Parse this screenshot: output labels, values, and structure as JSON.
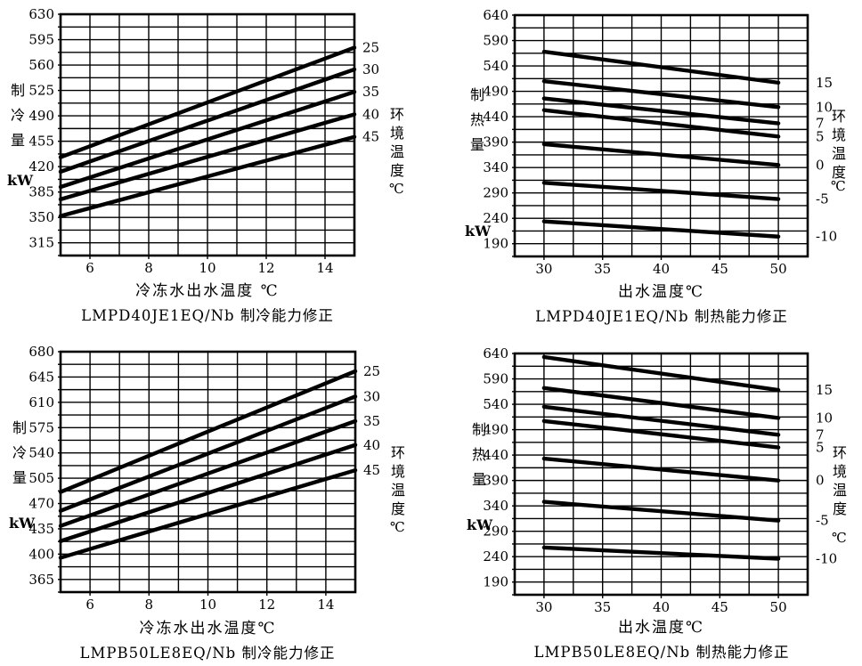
{
  "page": {
    "background": "#ffffff",
    "line_color": "#000000",
    "description_labels": {
      "cooling_y": "制冷量",
      "heating_y": "制热量",
      "kw": "kW",
      "ambient": "环境温度",
      "celsius": "℃"
    }
  },
  "chart_data": [
    {
      "id": "lmpd40-cooling",
      "type": "line",
      "caption": "LMPD40JE1EQ/Nb 制冷能力修正",
      "xlabel": "冷冻水出水温度 ℃",
      "left_axis": {
        "title": "制冷量",
        "unit": "kW"
      },
      "right_axis": {
        "title": "环境温度",
        "unit": "℃"
      },
      "xlim": [
        5,
        15
      ],
      "ylim": [
        297.5,
        630
      ],
      "x_grid_step": 1,
      "y_grid_step": 17.5,
      "x_ticks": [
        6,
        8,
        10,
        12,
        14
      ],
      "y_ticks": [
        315,
        350,
        385,
        420,
        455,
        490,
        525,
        560,
        595,
        630
      ],
      "grid": "on",
      "legend_position": "right-line-labels",
      "series": [
        {
          "name": "25",
          "x": [
            5,
            15
          ],
          "y": [
            433,
            584
          ]
        },
        {
          "name": "30",
          "x": [
            5,
            15
          ],
          "y": [
            413,
            554
          ]
        },
        {
          "name": "35",
          "x": [
            5,
            15
          ],
          "y": [
            392,
            523
          ]
        },
        {
          "name": "40",
          "x": [
            5,
            15
          ],
          "y": [
            375,
            492
          ]
        },
        {
          "name": "45",
          "x": [
            5,
            15
          ],
          "y": [
            352,
            461
          ]
        }
      ]
    },
    {
      "id": "lmpd40-heating",
      "type": "line",
      "caption": "LMPD40JE1EQ/Nb 制热能力修正",
      "xlabel": "出水温度℃",
      "left_axis": {
        "title": "制热量",
        "unit": "kW"
      },
      "right_axis": {
        "title": "环境温度",
        "unit": "℃"
      },
      "xlim": [
        27.5,
        52.5
      ],
      "ylim": [
        165,
        640
      ],
      "x_grid_step": 2.5,
      "y_grid_step": 25,
      "x_ticks": [
        30,
        35,
        40,
        45,
        50
      ],
      "y_ticks": [
        190,
        240,
        290,
        340,
        390,
        440,
        490,
        540,
        590,
        640
      ],
      "grid": "on",
      "legend_position": "right-line-labels",
      "series": [
        {
          "name": "15",
          "x": [
            30,
            50
          ],
          "y": [
            568,
            507
          ]
        },
        {
          "name": "10",
          "x": [
            30,
            50
          ],
          "y": [
            510,
            459
          ]
        },
        {
          "name": "7",
          "x": [
            30,
            50
          ],
          "y": [
            476,
            427
          ]
        },
        {
          "name": "5",
          "x": [
            30,
            50
          ],
          "y": [
            453,
            401
          ]
        },
        {
          "name": "0",
          "x": [
            30,
            50
          ],
          "y": [
            386,
            345
          ]
        },
        {
          "name": "-5",
          "x": [
            30,
            50
          ],
          "y": [
            310,
            278
          ]
        },
        {
          "name": "-10",
          "x": [
            30,
            50
          ],
          "y": [
            234,
            204
          ]
        }
      ]
    },
    {
      "id": "lmpb50-cooling",
      "type": "line",
      "caption": "LMPB50LE8EQ/Nb 制冷能力修正",
      "xlabel": "冷冻水出水温度℃",
      "left_axis": {
        "title": "制冷量",
        "unit": "kW"
      },
      "right_axis": {
        "title": "环境温度",
        "unit": "℃"
      },
      "xlim": [
        5,
        15
      ],
      "ylim": [
        347.5,
        680
      ],
      "x_grid_step": 1,
      "y_grid_step": 17.5,
      "x_ticks": [
        6,
        8,
        10,
        12,
        14
      ],
      "y_ticks": [
        365,
        400,
        435,
        470,
        505,
        540,
        575,
        610,
        645,
        680
      ],
      "grid": "on",
      "legend_position": "right-line-labels",
      "series": [
        {
          "name": "25",
          "x": [
            5,
            15
          ],
          "y": [
            486,
            653
          ]
        },
        {
          "name": "30",
          "x": [
            5,
            15
          ],
          "y": [
            460,
            618
          ]
        },
        {
          "name": "35",
          "x": [
            5,
            15
          ],
          "y": [
            439,
            584
          ]
        },
        {
          "name": "40",
          "x": [
            5,
            15
          ],
          "y": [
            418,
            551
          ]
        },
        {
          "name": "45",
          "x": [
            5,
            15
          ],
          "y": [
            395,
            516
          ]
        }
      ]
    },
    {
      "id": "lmpb50-heating",
      "type": "line",
      "caption": "LMPB50LE8EQ/Nb 制热能力修正",
      "xlabel": "出水温度℃",
      "left_axis": {
        "title": "制热量",
        "unit": "kW"
      },
      "right_axis": {
        "title": "环境温度",
        "unit": "℃"
      },
      "xlim": [
        27.5,
        52.5
      ],
      "ylim": [
        165,
        640
      ],
      "x_grid_step": 2.5,
      "y_grid_step": 25,
      "x_ticks": [
        30,
        35,
        40,
        45,
        50
      ],
      "y_ticks": [
        190,
        240,
        290,
        340,
        390,
        440,
        490,
        540,
        590,
        640
      ],
      "grid": "on",
      "legend_position": "right-line-labels",
      "series": [
        {
          "name": "15",
          "x": [
            30,
            50
          ],
          "y": [
            633,
            568
          ]
        },
        {
          "name": "10",
          "x": [
            30,
            50
          ],
          "y": [
            572,
            513
          ]
        },
        {
          "name": "7",
          "x": [
            30,
            50
          ],
          "y": [
            535,
            480
          ]
        },
        {
          "name": "5",
          "x": [
            30,
            50
          ],
          "y": [
            507,
            455
          ]
        },
        {
          "name": "0",
          "x": [
            30,
            50
          ],
          "y": [
            433,
            390
          ]
        },
        {
          "name": "-5",
          "x": [
            30,
            50
          ],
          "y": [
            348,
            311
          ]
        },
        {
          "name": "-10",
          "x": [
            30,
            50
          ],
          "y": [
            258,
            236
          ]
        }
      ]
    }
  ]
}
